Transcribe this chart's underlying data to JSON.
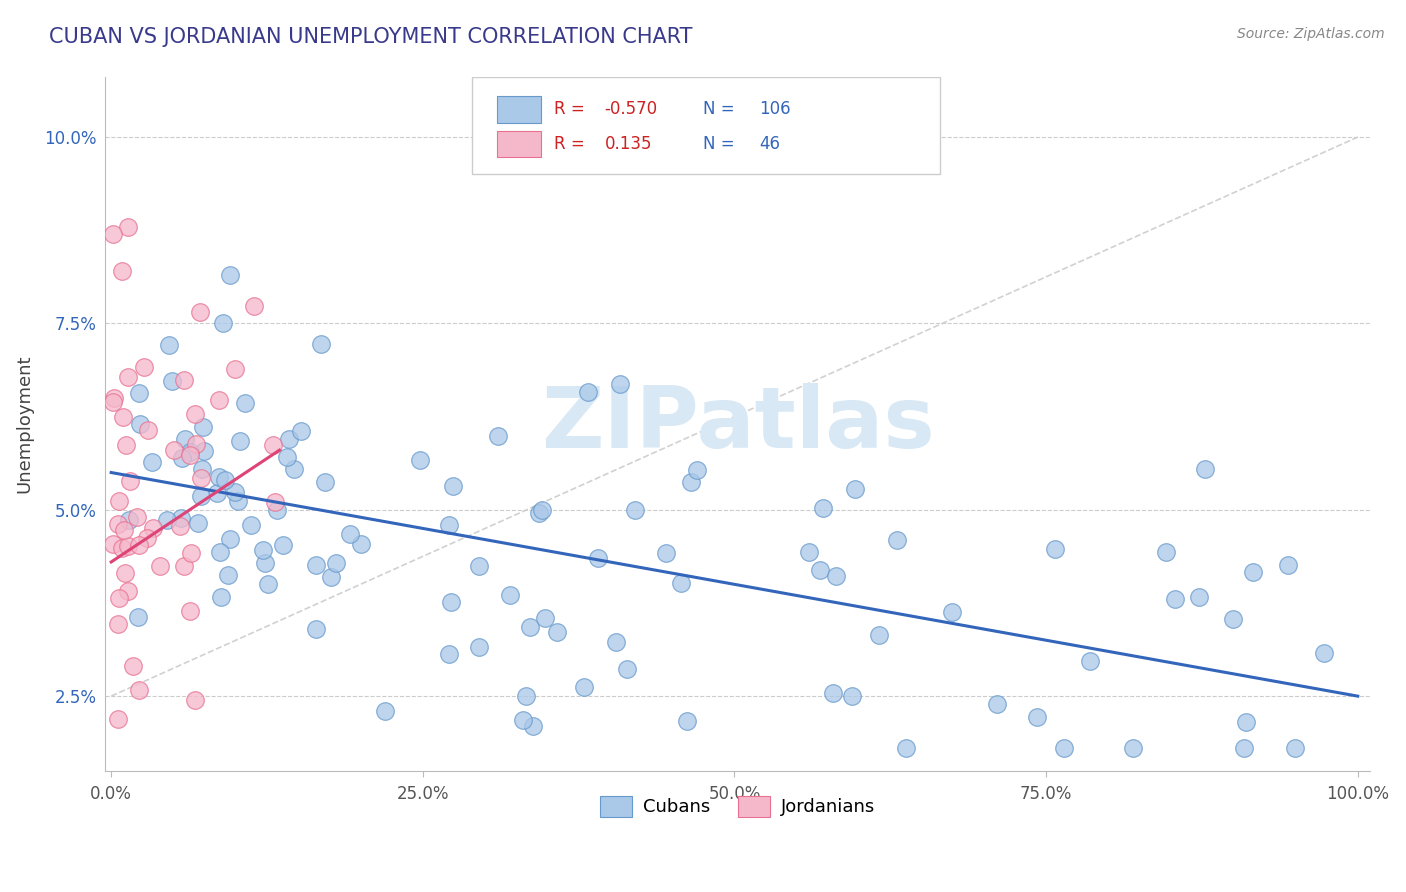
{
  "title": "CUBAN VS JORDANIAN UNEMPLOYMENT CORRELATION CHART",
  "title_color": "#3a3a8c",
  "ylabel": "Unemployment",
  "source_text": "Source: ZipAtlas.com",
  "xlim": [
    -0.005,
    1.01
  ],
  "ylim": [
    0.015,
    0.108
  ],
  "yticks": [
    0.025,
    0.05,
    0.075,
    0.1
  ],
  "ytick_labels": [
    "2.5%",
    "5.0%",
    "7.5%",
    "10.0%"
  ],
  "xtick_vals": [
    0.0,
    0.25,
    0.5,
    0.75,
    1.0
  ],
  "xtick_labels": [
    "0.0%",
    "25.0%",
    "50.0%",
    "75.0%",
    "100.0%"
  ],
  "background_color": "#ffffff",
  "grid_color": "#cccccc",
  "blue_scatter_color": "#aac8e8",
  "blue_edge_color": "#6699cc",
  "pink_scatter_color": "#f5b8cb",
  "pink_edge_color": "#e87090",
  "blue_line_color": "#3366bb",
  "pink_line_color": "#dd4477",
  "dash_line_color": "#cccccc",
  "R_color": "#cc2222",
  "N_color": "#3366bb",
  "legend_text_color": "#333333",
  "watermark_color": "#d8e8f5",
  "title_fontsize": 15,
  "axis_fontsize": 12,
  "tick_fontsize": 12,
  "blue_line_start_y": 0.055,
  "blue_line_end_y": 0.025,
  "pink_line_start_x": 0.0,
  "pink_line_start_y": 0.043,
  "pink_line_end_x": 0.135,
  "pink_line_end_y": 0.058
}
